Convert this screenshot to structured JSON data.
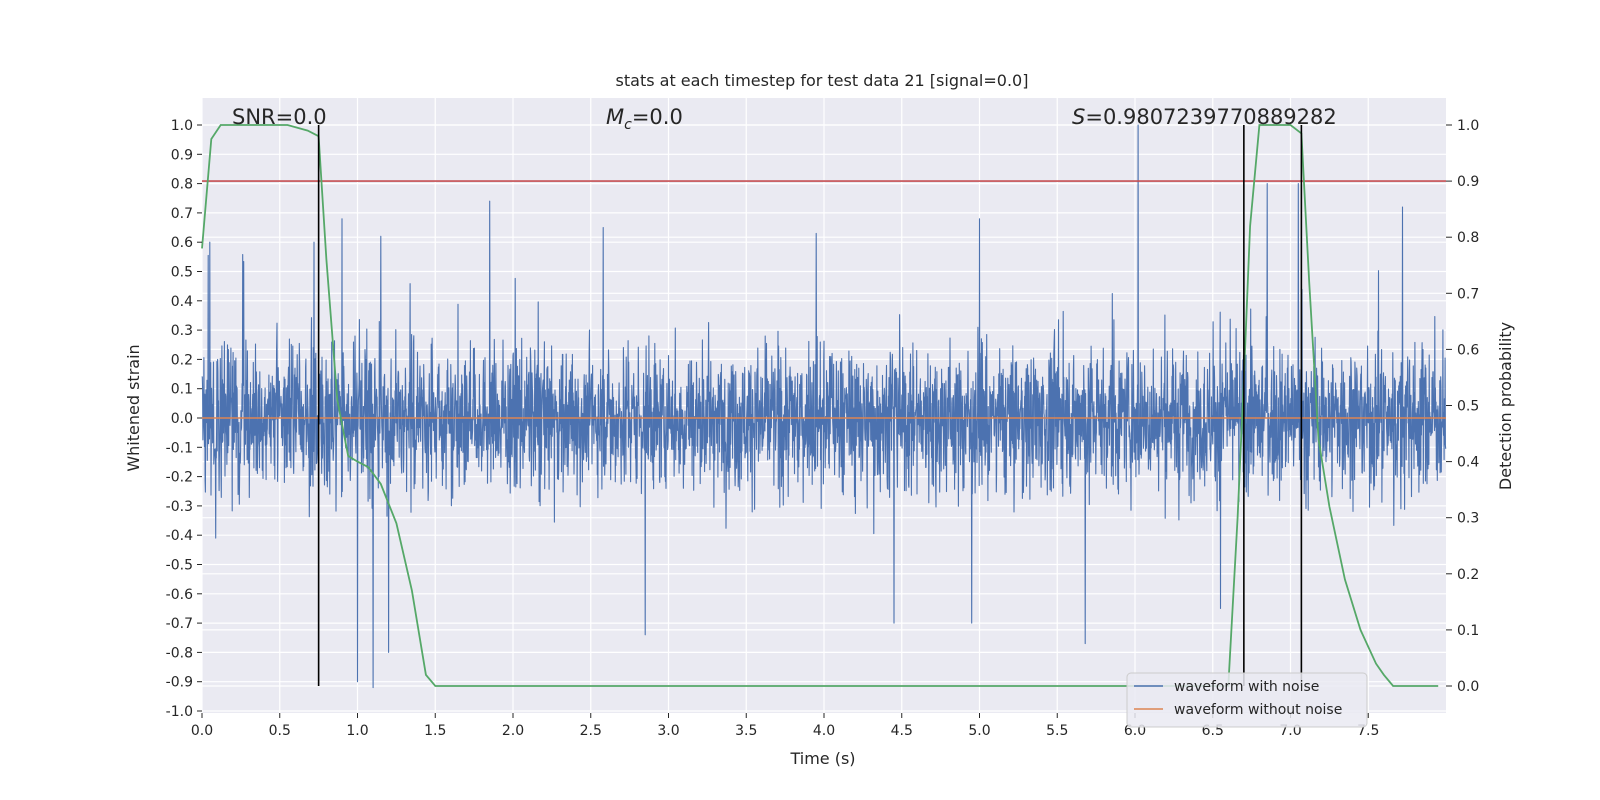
{
  "chart_data": {
    "type": "line",
    "title": "stats at each timestep for test data 21 [signal=0.0]",
    "xlabel": "Time (s)",
    "ylabel_left": "Whitened strain",
    "ylabel_right": "Detection probability",
    "xlim": [
      0.0,
      8.0
    ],
    "ylim_left": [
      -1.0,
      1.0
    ],
    "ylim_right": [
      0.0,
      1.0
    ],
    "grid": true,
    "x_ticks": [
      "0.0",
      "0.5",
      "1.0",
      "1.5",
      "2.0",
      "2.5",
      "3.0",
      "3.5",
      "4.0",
      "4.5",
      "5.0",
      "5.5",
      "6.0",
      "6.5",
      "7.0",
      "7.5"
    ],
    "y_left_ticks": [
      "1.0",
      "0.9",
      "0.8",
      "0.7",
      "0.6",
      "0.5",
      "0.4",
      "0.3",
      "0.2",
      "0.1",
      "0.0",
      "-0.1",
      "-0.2",
      "-0.3",
      "-0.4",
      "-0.5",
      "-0.6",
      "-0.7",
      "-0.8",
      "-0.9",
      "-1.0"
    ],
    "y_right_ticks": [
      "1.0",
      "0.9",
      "0.8",
      "0.7",
      "0.6",
      "0.5",
      "0.4",
      "0.3",
      "0.2",
      "0.1",
      "0.0"
    ],
    "annotations": {
      "snr": "SNR=0.0",
      "mc_symbol": "M",
      "mc_sub": "c",
      "mc_value": "=0.0",
      "s_symbol": "S",
      "s_value": "=0.9807239770889282"
    },
    "threshold": {
      "axis": "right",
      "value": 0.9,
      "color": "#c44e52"
    },
    "vertical_markers": [
      0.75,
      6.7,
      7.07
    ],
    "legend": {
      "placement": "lower-right",
      "entries": [
        {
          "label": "waveform with noise",
          "color": "#4c72b0"
        },
        {
          "label": "waveform without noise",
          "color": "#dd8452"
        }
      ]
    },
    "series": [
      {
        "name": "waveform with noise",
        "axis": "left",
        "color": "#4c72b0",
        "description_values": "dense noise, amplitude mostly within ±0.5, peaks up to 1.0 near 6.02 s and down to -0.92 near 1.1 s",
        "notable_peaks": [
          {
            "x": 0.05,
            "y": 0.6
          },
          {
            "x": 0.72,
            "y": 0.6
          },
          {
            "x": 0.9,
            "y": 0.68
          },
          {
            "x": 1.15,
            "y": 0.62
          },
          {
            "x": 1.85,
            "y": 0.74
          },
          {
            "x": 2.58,
            "y": 0.65
          },
          {
            "x": 3.95,
            "y": 0.63
          },
          {
            "x": 5.0,
            "y": 0.68
          },
          {
            "x": 6.02,
            "y": 1.0
          },
          {
            "x": 6.85,
            "y": 0.8
          },
          {
            "x": 7.05,
            "y": 0.8
          },
          {
            "x": 7.72,
            "y": 0.72
          },
          {
            "x": 1.0,
            "y": -0.9
          },
          {
            "x": 1.1,
            "y": -0.92
          },
          {
            "x": 1.2,
            "y": -0.8
          },
          {
            "x": 2.85,
            "y": -0.74
          },
          {
            "x": 4.45,
            "y": -0.7
          },
          {
            "x": 4.95,
            "y": -0.7
          },
          {
            "x": 5.68,
            "y": -0.77
          },
          {
            "x": 6.55,
            "y": -0.65
          }
        ]
      },
      {
        "name": "waveform without noise",
        "axis": "left",
        "color": "#dd8452",
        "x": [
          0.0,
          8.0
        ],
        "y": [
          0.0,
          0.0
        ]
      },
      {
        "name": "",
        "axis": "right",
        "color": "#55a868",
        "x": [
          0.0,
          0.06,
          0.12,
          0.25,
          0.4,
          0.55,
          0.68,
          0.75,
          0.8,
          0.87,
          0.94,
          1.0,
          1.07,
          1.15,
          1.25,
          1.35,
          1.44,
          1.5,
          2.0,
          3.0,
          4.0,
          5.0,
          6.0,
          6.6,
          6.66,
          6.7,
          6.74,
          6.8,
          6.9,
          7.0,
          7.07,
          7.12,
          7.18,
          7.25,
          7.35,
          7.45,
          7.55,
          7.6,
          7.66,
          7.8,
          7.95
        ],
        "y": [
          0.78,
          0.975,
          1.0,
          1.0,
          1.0,
          1.0,
          0.99,
          0.98,
          0.76,
          0.51,
          0.41,
          0.4,
          0.39,
          0.36,
          0.29,
          0.17,
          0.02,
          0.0,
          0.0,
          0.0,
          0.0,
          0.0,
          0.0,
          0.0,
          0.3,
          0.55,
          0.82,
          1.0,
          1.0,
          1.0,
          0.985,
          0.72,
          0.44,
          0.32,
          0.19,
          0.1,
          0.04,
          0.02,
          0.0,
          0.0,
          0.0
        ]
      }
    ]
  }
}
